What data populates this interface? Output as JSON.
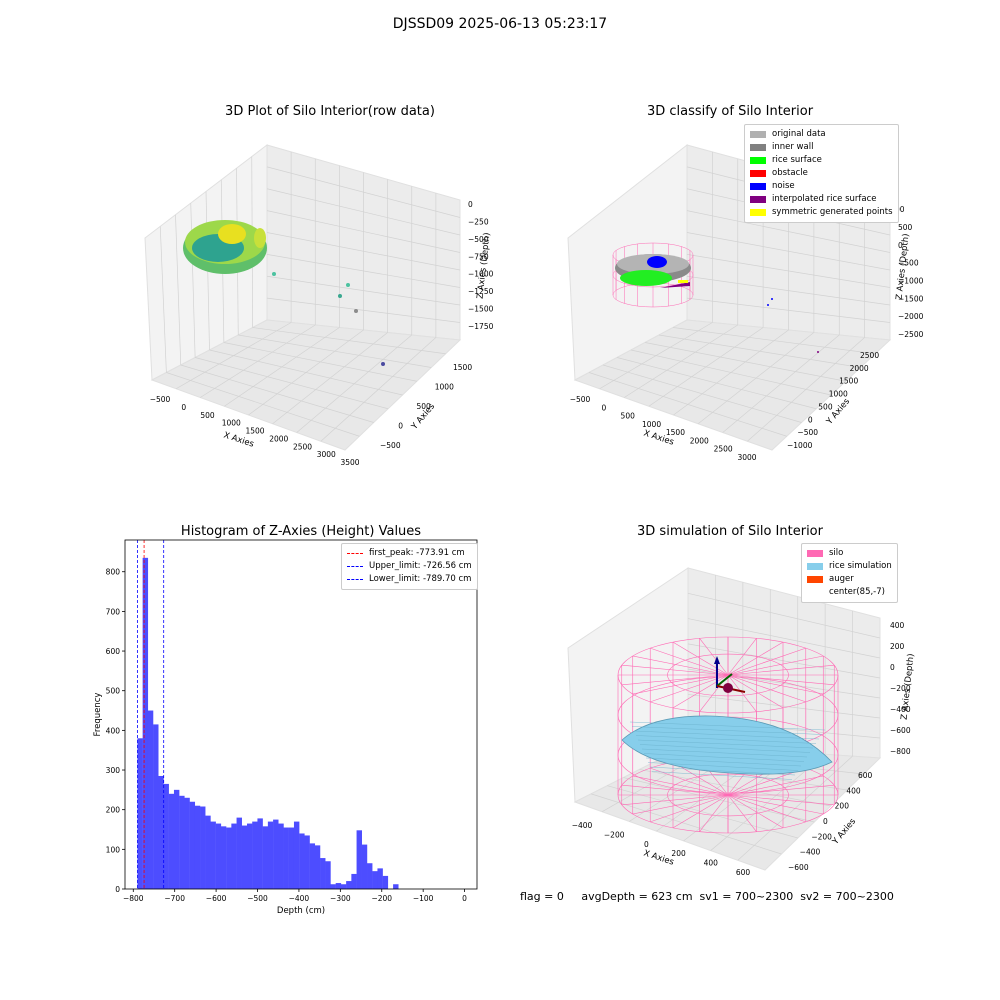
{
  "suptitle": "DJSSD09 2025-06-13 05:23:17",
  "panel_titles": {
    "raw": "3D Plot of Silo Interior(row data)",
    "classify": "3D classify of Silo Interior",
    "hist": "Histogram of Z-Axies (Height) Values",
    "sim": "3D simulation of Silo Interior"
  },
  "axis_labels": {
    "x": "X Axies",
    "y": "Y Axies",
    "z": "Z Axies (Depth)"
  },
  "raw_ticks": {
    "x": [
      "−500",
      "0",
      "500",
      "1000",
      "1500",
      "2000",
      "2500",
      "3000",
      "3500"
    ],
    "y": [
      "−500",
      "0",
      "500",
      "1000",
      "1500"
    ],
    "z": [
      "0",
      "−250",
      "−500",
      "−750",
      "−1000",
      "−1250",
      "−1500",
      "−1750"
    ]
  },
  "classify_ticks": {
    "x": [
      "−500",
      "0",
      "500",
      "1000",
      "1500",
      "2000",
      "2500",
      "3000"
    ],
    "y": [
      "−1000",
      "−500",
      "0",
      "500",
      "1000",
      "1500",
      "2000",
      "2500"
    ],
    "z": [
      "500",
      "0",
      "−500",
      "−1000",
      "−1500",
      "−2000",
      "−2500"
    ],
    "z_partial": "00"
  },
  "sim_ticks": {
    "x": [
      "−400",
      "−200",
      "0",
      "200",
      "400",
      "600"
    ],
    "y": [
      "−600",
      "−400",
      "−200",
      "0",
      "200",
      "400",
      "600"
    ],
    "z": [
      "400",
      "200",
      "0",
      "−200",
      "−400",
      "−600",
      "−800"
    ]
  },
  "classify_legend": [
    {
      "label": "original data",
      "color": "#b0b0b0"
    },
    {
      "label": "inner wall",
      "color": "#808080"
    },
    {
      "label": "rice surface",
      "color": "#00ff00"
    },
    {
      "label": "obstacle",
      "color": "#ff0000"
    },
    {
      "label": "noise",
      "color": "#0000ff"
    },
    {
      "label": "interpolated rice surface",
      "color": "#800080"
    },
    {
      "label": "symmetric generated points",
      "color": "#ffff00"
    }
  ],
  "sim_legend": [
    {
      "label": "silo",
      "color": "#ff69b4"
    },
    {
      "label": "rice simulation",
      "color": "#87ceeb"
    },
    {
      "label": "auger",
      "color": "#ff4500"
    },
    {
      "label": "center(85,-7)",
      "color": ""
    }
  ],
  "hist_legend": [
    {
      "label": "first_peak: -773.91 cm",
      "color": "#ff0000"
    },
    {
      "label": "Upper_limit: -726.56 cm",
      "color": "#0000ff"
    },
    {
      "label": "Lower_limit: -789.70 cm",
      "color": "#0000ff"
    }
  ],
  "footer": "flag = 0     avgDepth = 623 cm  sv1 = 700~2300  sv2 = 700~2300",
  "chart_data": {
    "type": "bar",
    "title": "Histogram of Z-Axies (Height) Values",
    "xlabel": "Depth (cm)",
    "ylabel": "Frequency",
    "xlim": [
      -820,
      30
    ],
    "ylim": [
      0,
      880
    ],
    "xticks": [
      -800,
      -700,
      -600,
      -500,
      -400,
      -300,
      -200,
      -100,
      0
    ],
    "yticks": [
      0,
      100,
      200,
      300,
      400,
      500,
      600,
      700,
      800
    ],
    "bin_width": 12.6,
    "bin_start": -790,
    "values": [
      380,
      835,
      450,
      415,
      285,
      265,
      240,
      250,
      235,
      230,
      220,
      210,
      208,
      185,
      170,
      165,
      158,
      155,
      165,
      180,
      160,
      165,
      170,
      178,
      158,
      170,
      175,
      165,
      155,
      155,
      170,
      140,
      135,
      115,
      110,
      78,
      70,
      12,
      15,
      12,
      20,
      38,
      148,
      112,
      65,
      45,
      52,
      33,
      0,
      12
    ],
    "vlines": [
      {
        "name": "first_peak",
        "x": -773.91,
        "color": "#ff0000"
      },
      {
        "name": "Upper_limit",
        "x": -726.56,
        "color": "#0000ff"
      },
      {
        "name": "Lower_limit",
        "x": -789.7,
        "color": "#0000ff"
      }
    ],
    "bar_color": "#4d4dff"
  }
}
